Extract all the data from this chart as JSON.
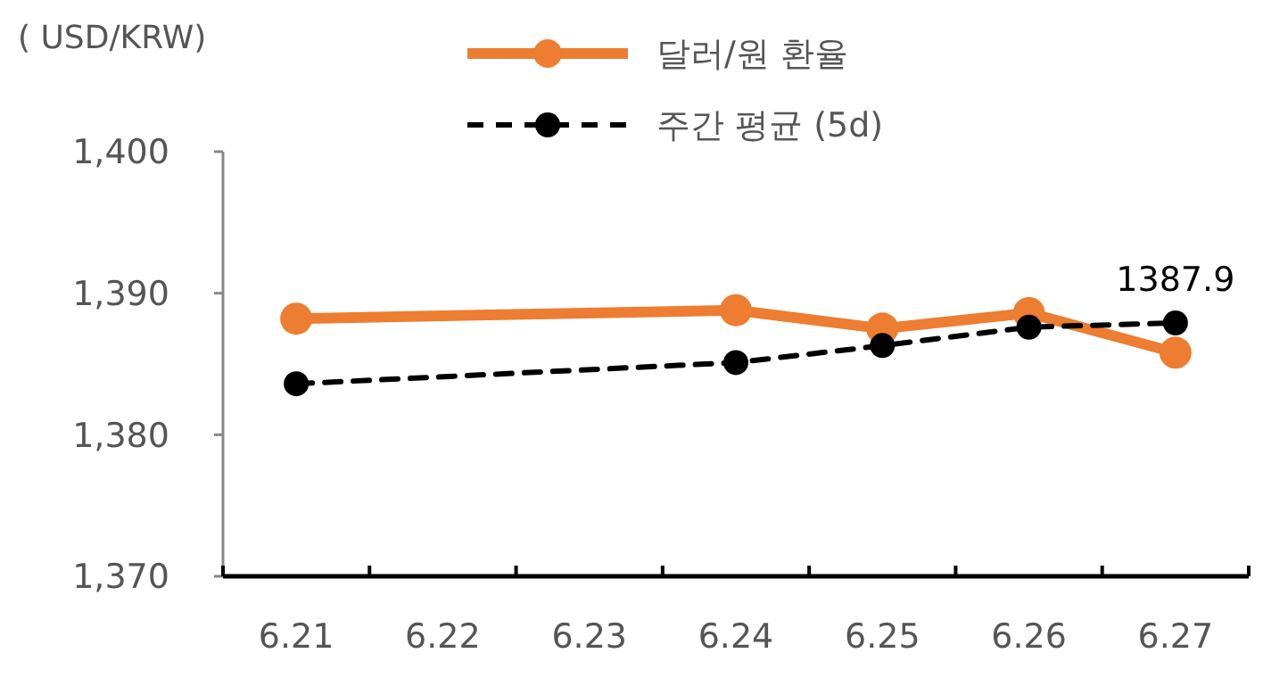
{
  "chart_data": {
    "type": "line",
    "ylabel": "( USD/KRW)",
    "categories": [
      "6.21",
      "6.22",
      "6.23",
      "6.24",
      "6.25",
      "6.26",
      "6.27"
    ],
    "series": [
      {
        "name": "달러/원 환율",
        "color": "#ed7d31",
        "values": [
          1388.2,
          null,
          null,
          1388.8,
          1387.5,
          1388.6,
          1385.8
        ],
        "marker": "circle",
        "line_style": "solid"
      },
      {
        "name": "주간 평균 (5d)",
        "color": "#000000",
        "values": [
          1383.6,
          null,
          null,
          1385.1,
          1386.3,
          1387.6,
          1387.9
        ],
        "marker": "circle",
        "line_style": "dashed",
        "value_labels": [
          null,
          null,
          null,
          null,
          null,
          null,
          "1387.9"
        ]
      }
    ],
    "ylim": [
      1370,
      1400
    ],
    "yticks": [
      {
        "value": 1370,
        "label": "1,370"
      },
      {
        "value": 1380,
        "label": "1,380"
      },
      {
        "value": 1390,
        "label": "1,390"
      },
      {
        "value": 1400,
        "label": "1,400"
      }
    ],
    "grid": false,
    "legend": "top"
  }
}
